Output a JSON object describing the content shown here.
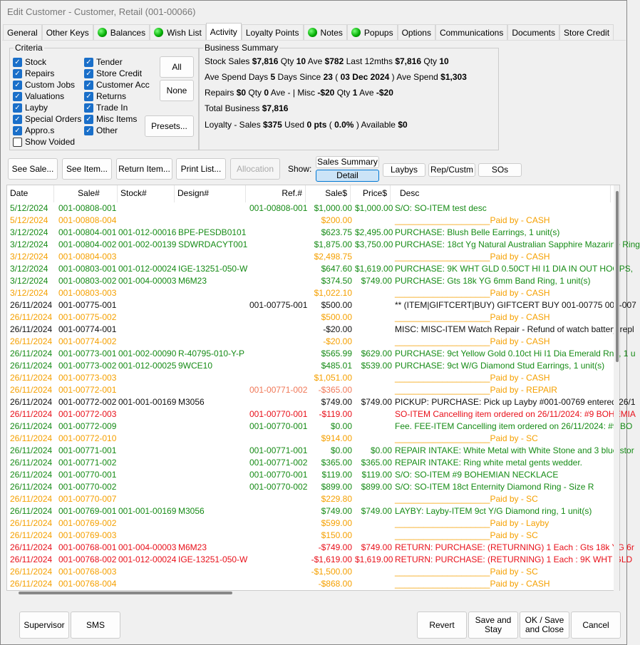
{
  "window": {
    "title": "Edit Customer - Customer, Retail (001-00066)"
  },
  "tabs": [
    {
      "label": "General",
      "dot": false
    },
    {
      "label": "Other Keys",
      "dot": false
    },
    {
      "label": "Balances",
      "dot": true
    },
    {
      "label": "Wish List",
      "dot": true
    },
    {
      "label": "Activity",
      "dot": false,
      "active": true
    },
    {
      "label": "Loyalty Points",
      "dot": false
    },
    {
      "label": "Notes",
      "dot": true
    },
    {
      "label": "Popups",
      "dot": true
    },
    {
      "label": "Options",
      "dot": false
    },
    {
      "label": "Communications",
      "dot": false
    },
    {
      "label": "Documents",
      "dot": false
    },
    {
      "label": "Store Credit",
      "dot": false
    }
  ],
  "criteria": {
    "title": "Criteria",
    "col1": [
      {
        "label": "Stock",
        "checked": true
      },
      {
        "label": "Repairs",
        "checked": true
      },
      {
        "label": "Custom Jobs",
        "checked": true
      },
      {
        "label": "Valuations",
        "checked": true
      },
      {
        "label": "Layby",
        "checked": true
      },
      {
        "label": "Special Orders",
        "checked": true
      },
      {
        "label": "Appro.s",
        "checked": true
      },
      {
        "label": "Show Voided",
        "checked": false
      }
    ],
    "col2": [
      {
        "label": "Tender",
        "checked": true
      },
      {
        "label": "Store Credit",
        "checked": true
      },
      {
        "label": "Customer Acc",
        "checked": true
      },
      {
        "label": "Returns",
        "checked": true
      },
      {
        "label": "Trade In",
        "checked": true
      },
      {
        "label": "Misc Items",
        "checked": true
      },
      {
        "label": "Other",
        "checked": true
      }
    ],
    "all": "All",
    "none": "None",
    "presets": "Presets..."
  },
  "summary": {
    "title": "Business Summary",
    "lines": [
      [
        [
          "Stock Sales ",
          0
        ],
        [
          "$7,816",
          1
        ],
        [
          " Qty ",
          0
        ],
        [
          "10",
          1
        ],
        [
          " Ave ",
          0
        ],
        [
          "$782",
          1
        ],
        [
          " Last 12mths ",
          0
        ],
        [
          "$7,816",
          1
        ],
        [
          " Qty ",
          0
        ],
        [
          "10",
          1
        ]
      ],
      [
        [
          "Ave Spend Days ",
          0
        ],
        [
          "5",
          1
        ],
        [
          " Days Since ",
          0
        ],
        [
          "23",
          1
        ],
        [
          " ( ",
          0
        ],
        [
          "03 Dec 2024",
          1
        ],
        [
          " ) Ave Spend ",
          0
        ],
        [
          "$1,303",
          1
        ]
      ],
      [
        [
          "Repairs ",
          0
        ],
        [
          "$0",
          1
        ],
        [
          " Qty ",
          0
        ],
        [
          "0",
          1
        ],
        [
          " Ave - ",
          0
        ],
        [
          " |  Misc ",
          0
        ],
        [
          "-$20",
          1
        ],
        [
          " Qty ",
          0
        ],
        [
          "1",
          1
        ],
        [
          " Ave ",
          0
        ],
        [
          "-$20",
          1
        ]
      ],
      [
        [
          "Total Business ",
          0
        ],
        [
          "$7,816",
          1
        ]
      ],
      [
        [
          "Loyalty - Sales ",
          0
        ],
        [
          "$375",
          1
        ],
        [
          " Used ",
          0
        ],
        [
          "0 pts",
          1
        ],
        [
          " ( ",
          0
        ],
        [
          "0.0%",
          1
        ],
        [
          " ) Available ",
          0
        ],
        [
          "$0",
          1
        ]
      ]
    ]
  },
  "actions": {
    "see_sale": "See Sale...",
    "see_item": "See Item...",
    "return_item": "Return Item...",
    "print_list": "Print List...",
    "allocation": "Allocation",
    "show": "Show:",
    "sales_summary": "Sales Summary",
    "detail": "Detail",
    "laybys": "Laybys",
    "rep_custm": "Rep/Custm",
    "sos": "SOs"
  },
  "colors": {
    "green": "#168b16",
    "orange": "#f5a000",
    "black": "#111111",
    "red": "#e8101a"
  },
  "table": {
    "columns": [
      "Date",
      "Sale#",
      "Stock#",
      "Design#",
      "Ref.#",
      "Sale$",
      "Price$",
      "Desc"
    ],
    "rows": [
      [
        "g",
        "5/12/2024",
        "001-00808-001",
        "",
        "",
        "001-00808-001",
        "$1,000.00",
        "$1,000.00",
        "S/O: SO-ITEM test desc"
      ],
      [
        "o",
        "5/12/2024",
        "001-00808-004",
        "",
        "",
        "",
        "$200.00",
        "",
        "____________________Paid by - CASH"
      ],
      [
        "g",
        "3/12/2024",
        "001-00804-001",
        "001-012-00016",
        "BPE-PESDB0101",
        "",
        "$623.75",
        "$2,495.00",
        "PURCHASE: Blush Belle Earrings, 1 unit(s)"
      ],
      [
        "g",
        "3/12/2024",
        "001-00804-002",
        "001-002-00139",
        "SDWRDACYT001",
        "",
        "$1,875.00",
        "$3,750.00",
        "PURCHASE: 18ct Yg Natural Australian Sapphire Mazarine Ring"
      ],
      [
        "o",
        "3/12/2024",
        "001-00804-003",
        "",
        "",
        "",
        "$2,498.75",
        "",
        "____________________Paid by - CASH"
      ],
      [
        "g",
        "3/12/2024",
        "001-00803-001",
        "001-012-00024",
        "IGE-13251-050-W",
        "",
        "$647.60",
        "$1,619.00",
        "PURCHASE: 9K WHT GLD 0.50CT HI I1 DIA IN OUT HOOPS,"
      ],
      [
        "g",
        "3/12/2024",
        "001-00803-002",
        "001-004-00003",
        "M6M23",
        "",
        "$374.50",
        "$749.00",
        "PURCHASE: Gts 18k YG 6mm Band Ring, 1 unit(s)"
      ],
      [
        "o",
        "3/12/2024",
        "001-00803-003",
        "",
        "",
        "",
        "$1,022.10",
        "",
        "____________________Paid by - CASH"
      ],
      [
        "k",
        "26/11/2024",
        "001-00775-001",
        "",
        "",
        "001-00775-001",
        "$500.00",
        "",
        "** (ITEM|GIFTCERT|BUY) GIFTCERT BUY 001-00775 001-007"
      ],
      [
        "o",
        "26/11/2024",
        "001-00775-002",
        "",
        "",
        "",
        "$500.00",
        "",
        "____________________Paid by - CASH"
      ],
      [
        "k",
        "26/11/2024",
        "001-00774-001",
        "",
        "",
        "",
        "-$20.00",
        "",
        "MISC: MISC-ITEM Watch Repair - Refund of watch battery repl"
      ],
      [
        "o",
        "26/11/2024",
        "001-00774-002",
        "",
        "",
        "",
        "-$20.00",
        "",
        "____________________Paid by - CASH"
      ],
      [
        "g",
        "26/11/2024",
        "001-00773-001",
        "001-002-00090",
        "R-40795-010-Y-P",
        "",
        "$565.99",
        "$629.00",
        "PURCHASE: 9ct Yellow Gold 0.10ct Hi I1 Dia Emerald Rng, 1 u"
      ],
      [
        "g",
        "26/11/2024",
        "001-00773-002",
        "001-012-00025",
        "9WCE10",
        "",
        "$485.01",
        "$539.00",
        "PURCHASE: 9ct W/G Diamond Stud Earrings, 1 unit(s)"
      ],
      [
        "o",
        "26/11/2024",
        "001-00773-003",
        "",
        "",
        "",
        "$1,051.00",
        "",
        "____________________Paid by - CASH"
      ],
      [
        "o",
        "26/11/2024",
        "001-00772-001",
        "",
        "",
        "001-00771-002",
        "-$365.00",
        "",
        "____________________Paid by - REPAIR"
      ],
      [
        "k",
        "26/11/2024",
        "001-00772-002",
        "001-001-00169",
        "M3056",
        "",
        "$749.00",
        "$749.00",
        "PICKUP: PURCHASE: Pick up Layby #001-00769 entered 26/1"
      ],
      [
        "r",
        "26/11/2024",
        "001-00772-003",
        "",
        "",
        "001-00770-001",
        "-$119.00",
        "",
        "SO-ITEM Cancelling item ordered on 26/11/2024: #9 BOHEMIA"
      ],
      [
        "g",
        "26/11/2024",
        "001-00772-009",
        "",
        "",
        "001-00770-001",
        "$0.00",
        "",
        "Fee. FEE-ITEM Cancelling item ordered on 26/11/2024: #9 BO"
      ],
      [
        "o",
        "26/11/2024",
        "001-00772-010",
        "",
        "",
        "",
        "$914.00",
        "",
        "____________________Paid by - SC"
      ],
      [
        "g",
        "26/11/2024",
        "001-00771-001",
        "",
        "",
        "001-00771-001",
        "$0.00",
        "$0.00",
        "REPAIR INTAKE: White Metal with White Stone and 3 blue stor"
      ],
      [
        "g",
        "26/11/2024",
        "001-00771-002",
        "",
        "",
        "001-00771-002",
        "$365.00",
        "$365.00",
        "REPAIR INTAKE: Ring white metal gents wedder."
      ],
      [
        "g",
        "26/11/2024",
        "001-00770-001",
        "",
        "",
        "001-00770-001",
        "$119.00",
        "$119.00",
        "S/O: SO-ITEM #9 BOHEMIAN NECKLACE"
      ],
      [
        "g",
        "26/11/2024",
        "001-00770-002",
        "",
        "",
        "001-00770-002",
        "$899.00",
        "$899.00",
        "S/O: SO-ITEM 18ct Enternity Diamond Ring - Size R"
      ],
      [
        "o",
        "26/11/2024",
        "001-00770-007",
        "",
        "",
        "",
        "$229.80",
        "",
        "____________________Paid by - SC"
      ],
      [
        "g",
        "26/11/2024",
        "001-00769-001",
        "001-001-00169",
        "M3056",
        "",
        "$749.00",
        "$749.00",
        "LAYBY: Layby-ITEM 9ct Y/G Diamond ring, 1 unit(s)"
      ],
      [
        "o",
        "26/11/2024",
        "001-00769-002",
        "",
        "",
        "",
        "$599.00",
        "",
        "____________________Paid by - Layby"
      ],
      [
        "o",
        "26/11/2024",
        "001-00769-003",
        "",
        "",
        "",
        "$150.00",
        "",
        "____________________Paid by - SC"
      ],
      [
        "r",
        "26/11/2024",
        "001-00768-001",
        "001-004-00003",
        "M6M23",
        "",
        "-$749.00",
        "$749.00",
        "RETURN: PURCHASE: (RETURNING) 1 Each : Gts 18k YG 6r"
      ],
      [
        "r",
        "26/11/2024",
        "001-00768-002",
        "001-012-00024",
        "IGE-13251-050-W",
        "",
        "-$1,619.00",
        "$1,619.00",
        "RETURN: PURCHASE: (RETURNING) 1 Each : 9K WHT GLD"
      ],
      [
        "o",
        "26/11/2024",
        "001-00768-003",
        "",
        "",
        "",
        "-$1,500.00",
        "",
        "____________________Paid by - SC"
      ],
      [
        "o",
        "26/11/2024",
        "001-00768-004",
        "",
        "",
        "",
        "-$868.00",
        "",
        "____________________Paid by - CASH"
      ]
    ]
  },
  "footer": {
    "supervisor": "Supervisor",
    "sms": "SMS",
    "revert": "Revert",
    "save_stay": "Save and Stay",
    "ok_save_close": "OK / Save and Close",
    "cancel": "Cancel"
  }
}
